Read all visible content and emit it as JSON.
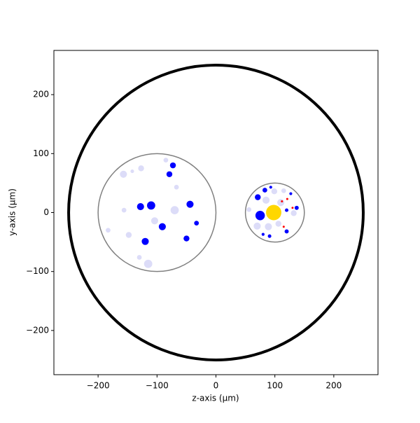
{
  "chart_data": {
    "type": "scatter",
    "xlabel": "z-axis (μm)",
    "ylabel": "y-axis (μm)",
    "xlim": [
      -275,
      275
    ],
    "ylim": [
      -275,
      275
    ],
    "xticks": [
      {
        "value": -200,
        "label": "−200"
      },
      {
        "value": -100,
        "label": "−100"
      },
      0,
      100,
      200
    ],
    "yticks": [
      {
        "value": -200,
        "label": "−200"
      },
      {
        "value": -100,
        "label": "−100"
      },
      0,
      100,
      200
    ],
    "circles": {
      "x": [
        0,
        -100,
        100
      ],
      "y": [
        0,
        0,
        0
      ],
      "r": [
        250,
        100,
        50
      ],
      "colors": [
        "#000000",
        "#808080",
        "#808080"
      ],
      "linewidths": [
        4,
        1.5,
        1.5
      ]
    },
    "series": [
      {
        "color": "#dcdcf8",
        "x": [
          -157,
          -127,
          -142,
          -70,
          -104,
          -115,
          -148,
          -183,
          -156,
          -130,
          -67,
          -85,
          85,
          70,
          89,
          110,
          132,
          106,
          99,
          115,
          56
        ],
        "y": [
          65,
          75,
          70,
          4,
          -14,
          -87,
          -38,
          -30,
          4,
          -76,
          43,
          89,
          21,
          -23,
          -24,
          17,
          -1,
          -19,
          36,
          37,
          5
        ],
        "sizes": [
          6,
          5,
          3,
          7,
          6,
          7,
          5,
          4,
          4,
          4,
          4,
          4,
          6,
          6,
          6,
          6,
          5,
          5,
          5,
          4,
          4
        ]
      },
      {
        "color": "#0000ff",
        "x": [
          -73,
          -79,
          -128,
          -110,
          -91,
          -44,
          -33,
          -50,
          -120,
          83,
          71,
          93,
          127,
          75,
          137,
          120,
          120,
          91,
          80
        ],
        "y": [
          80,
          65,
          10,
          12,
          -24,
          14,
          -18,
          -44,
          -49,
          38,
          26,
          43,
          32,
          -5,
          8,
          4,
          -32,
          -40,
          -37
        ],
        "sizes": [
          5,
          5,
          6,
          7,
          6,
          6,
          4,
          5,
          6,
          4,
          5,
          2.5,
          2.5,
          8,
          3.5,
          3,
          3.5,
          3,
          2.5
        ]
      },
      {
        "color": "#ff0000",
        "x": [
          112,
          121,
          115,
          130
        ],
        "y": [
          19,
          23,
          -24,
          8
        ],
        "sizes": [
          1.8,
          1.8,
          1.8,
          1.8
        ]
      },
      {
        "color": "#ffd700",
        "x": [
          98
        ],
        "y": [
          0
        ],
        "sizes": [
          13
        ]
      }
    ]
  }
}
